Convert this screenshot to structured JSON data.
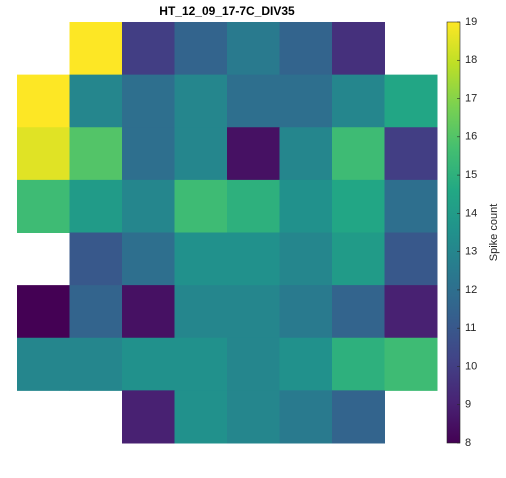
{
  "chart_data": {
    "type": "heatmap",
    "title": "HT_12_09_17-7C_DIV35",
    "colorbar_label": "Spike count",
    "colormap": "viridis",
    "clim": [
      8,
      19
    ],
    "cticks": [
      8,
      9,
      10,
      11,
      12,
      13,
      14,
      15,
      16,
      17,
      18,
      19
    ],
    "values": [
      [
        null,
        19,
        10,
        11.5,
        12.5,
        11.5,
        9.5,
        null
      ],
      [
        19,
        13,
        12,
        13,
        12,
        12,
        13,
        14.5
      ],
      [
        18.5,
        16,
        12,
        13,
        8.5,
        13,
        15.5,
        10
      ],
      [
        15.5,
        14,
        13,
        15.5,
        15,
        13.5,
        14.5,
        12
      ],
      [
        null,
        11,
        12,
        13.5,
        13.5,
        13,
        14,
        11
      ],
      [
        8,
        11.5,
        8.5,
        13,
        13,
        12.5,
        11.5,
        9
      ],
      [
        13,
        13,
        13.5,
        13.5,
        13,
        13.5,
        15,
        15.5
      ],
      [
        null,
        null,
        9,
        13.5,
        13,
        12.5,
        11.5,
        null
      ]
    ]
  }
}
